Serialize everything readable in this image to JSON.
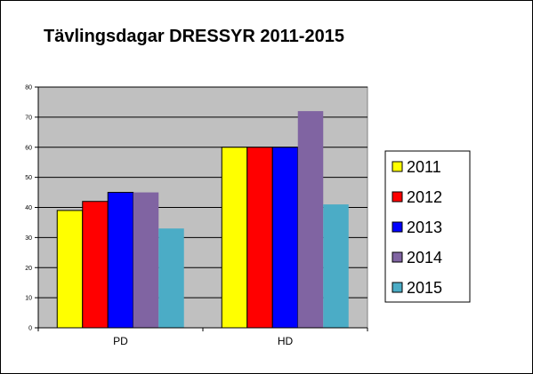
{
  "chart_data": {
    "type": "bar",
    "title": "Tävlingsdagar DRESSYR 2011-2015",
    "xlabel": "",
    "ylabel": "",
    "categories": [
      "PD",
      "HD"
    ],
    "series": [
      {
        "name": "2011",
        "color": "#ffff00",
        "values": [
          39,
          60
        ]
      },
      {
        "name": "2012",
        "color": "#ff0000",
        "values": [
          42,
          60
        ]
      },
      {
        "name": "2013",
        "color": "#0000ff",
        "values": [
          45,
          60
        ]
      },
      {
        "name": "2014",
        "color": "#8064a2",
        "values": [
          45,
          72
        ]
      },
      {
        "name": "2015",
        "color": "#4bacc6",
        "values": [
          33,
          41
        ]
      }
    ],
    "ylim": [
      0,
      80
    ],
    "yticks": [
      "0",
      "10",
      "20",
      "30",
      "40",
      "50",
      "60",
      "70",
      "80"
    ],
    "grid": true,
    "plot_background": "#c0c0c0",
    "legend": "right"
  }
}
